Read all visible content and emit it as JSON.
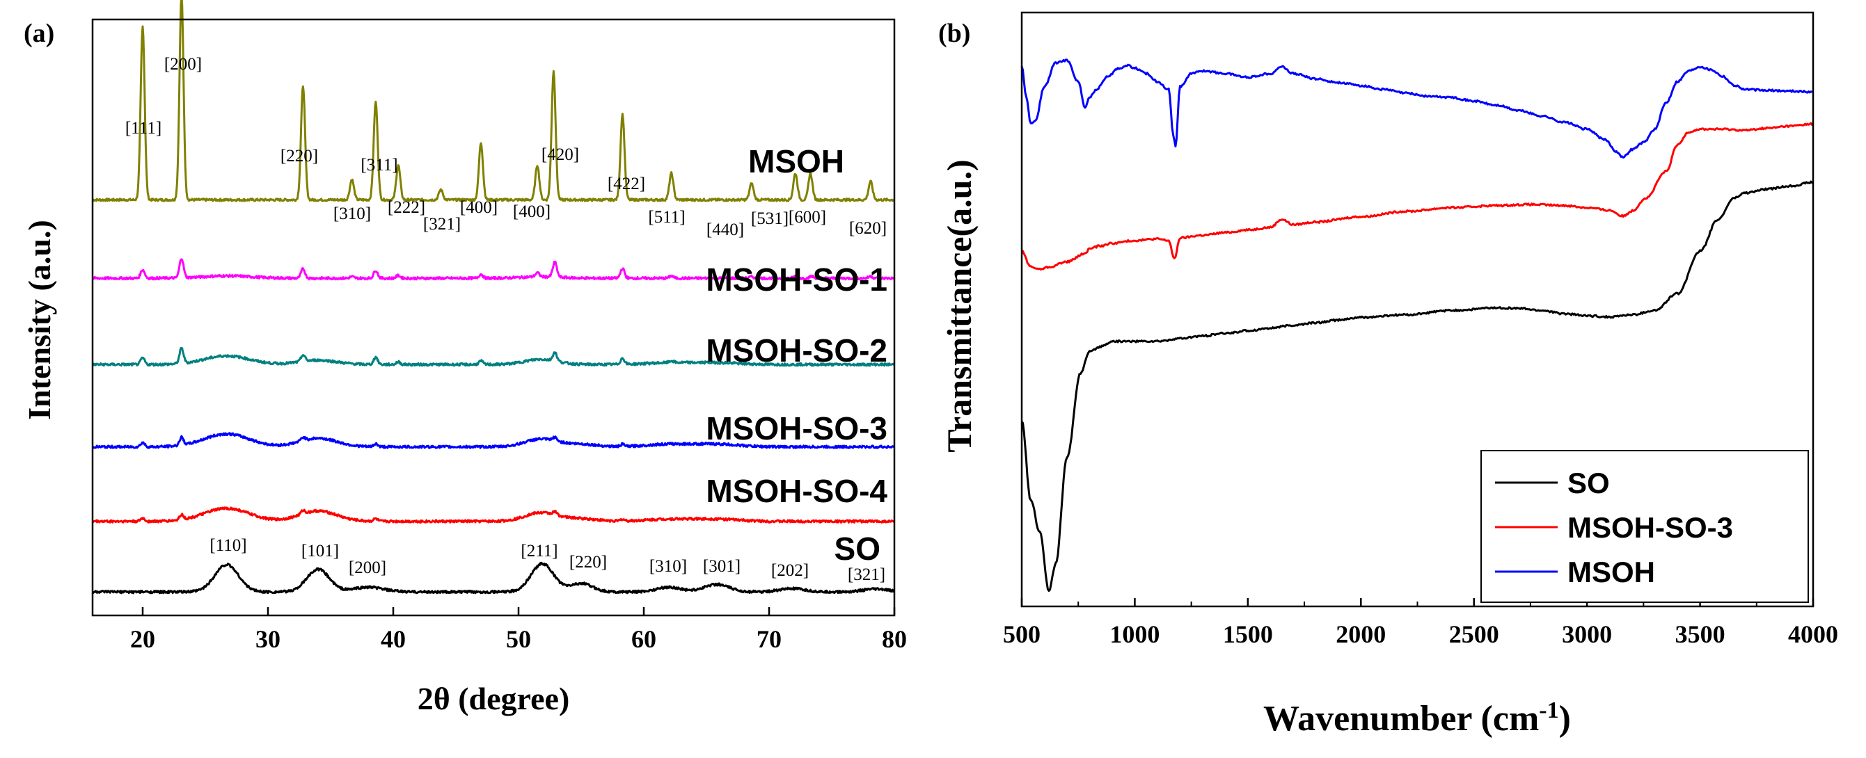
{
  "chart_data": [
    {
      "panel": "(a)",
      "type": "line",
      "xlabel": "2θ (degree)",
      "ylabel": "Intensity (a.u.)",
      "xlim": [
        16,
        80
      ],
      "xticks": [
        20,
        30,
        40,
        50,
        60,
        70,
        80
      ],
      "series": [
        {
          "name": "MSOH",
          "color": "#808000",
          "offset": 5.3,
          "amp": 2.6,
          "peaks": [
            [
              20.0,
              0.85
            ],
            [
              23.1,
              1.0
            ],
            [
              32.8,
              0.56
            ],
            [
              36.7,
              0.1
            ],
            [
              38.6,
              0.48
            ],
            [
              40.4,
              0.17
            ],
            [
              43.8,
              0.05
            ],
            [
              47.0,
              0.28
            ],
            [
              51.5,
              0.17
            ],
            [
              52.8,
              0.63
            ],
            [
              58.3,
              0.42
            ],
            [
              62.2,
              0.13
            ],
            [
              68.6,
              0.08
            ],
            [
              72.1,
              0.13
            ],
            [
              73.3,
              0.13
            ],
            [
              78.1,
              0.09
            ]
          ],
          "humps": []
        },
        {
          "name": "MSOH-SO-1",
          "color": "#ff00ff",
          "offset": 4.3,
          "amp": 0.5,
          "peaks": [
            [
              20.0,
              0.22
            ],
            [
              23.1,
              0.5
            ],
            [
              32.8,
              0.24
            ],
            [
              36.7,
              0.04
            ],
            [
              38.6,
              0.2
            ],
            [
              40.4,
              0.07
            ],
            [
              47.0,
              0.1
            ],
            [
              51.5,
              0.1
            ],
            [
              52.9,
              0.38
            ],
            [
              58.3,
              0.25
            ],
            [
              62.2,
              0.06
            ],
            [
              68.6,
              0.04
            ],
            [
              72.1,
              0.05
            ],
            [
              73.4,
              0.05
            ],
            [
              78.1,
              0.05
            ]
          ],
          "humps": [
            [
              26.7,
              0.06,
              2.0
            ],
            [
              51.8,
              0.04,
              1.6
            ]
          ]
        },
        {
          "name": "MSOH-SO-2",
          "color": "#008080",
          "offset": 3.2,
          "amp": 0.55,
          "peaks": [
            [
              20.0,
              0.15
            ],
            [
              23.1,
              0.35
            ],
            [
              32.8,
              0.15
            ],
            [
              38.6,
              0.17
            ],
            [
              40.4,
              0.06
            ],
            [
              47.0,
              0.08
            ],
            [
              52.9,
              0.2
            ],
            [
              58.3,
              0.14
            ],
            [
              62.2,
              0.04
            ]
          ],
          "humps": [
            [
              26.7,
              0.2,
              1.8
            ],
            [
              34.0,
              0.1,
              1.5
            ],
            [
              51.8,
              0.12,
              1.3
            ],
            [
              62.0,
              0.04,
              1.8
            ],
            [
              65.8,
              0.04,
              1.8
            ]
          ]
        },
        {
          "name": "MSOH-SO-3",
          "color": "#0000ff",
          "offset": 2.15,
          "amp": 0.55,
          "peaks": [
            [
              20.0,
              0.1
            ],
            [
              23.1,
              0.18
            ],
            [
              32.8,
              0.08
            ],
            [
              38.6,
              0.07
            ],
            [
              52.9,
              0.08
            ],
            [
              58.3,
              0.05
            ]
          ],
          "humps": [
            [
              26.7,
              0.3,
              1.8
            ],
            [
              34.0,
              0.2,
              1.5
            ],
            [
              51.8,
              0.18,
              1.3
            ],
            [
              55.0,
              0.06,
              1.3
            ],
            [
              62.0,
              0.06,
              1.8
            ],
            [
              65.8,
              0.06,
              1.8
            ]
          ]
        },
        {
          "name": "MSOH-SO-4",
          "color": "#ff0000",
          "offset": 1.2,
          "amp": 0.55,
          "peaks": [
            [
              20.0,
              0.07
            ],
            [
              23.1,
              0.12
            ],
            [
              32.8,
              0.08
            ],
            [
              38.6,
              0.06
            ],
            [
              52.9,
              0.07
            ],
            [
              58.3,
              0.04
            ]
          ],
          "humps": [
            [
              26.7,
              0.3,
              1.8
            ],
            [
              34.0,
              0.24,
              1.5
            ],
            [
              51.8,
              0.2,
              1.3
            ],
            [
              55.0,
              0.06,
              1.3
            ],
            [
              62.0,
              0.05,
              1.8
            ],
            [
              65.8,
              0.05,
              1.8
            ]
          ]
        },
        {
          "name": "SO",
          "color": "#000000",
          "offset": 0.3,
          "amp": 0.6,
          "peaks": [],
          "humps": [
            [
              26.7,
              0.58,
              0.95
            ],
            [
              34.0,
              0.48,
              0.9
            ],
            [
              38.0,
              0.1,
              1.2
            ],
            [
              51.9,
              0.6,
              0.9
            ],
            [
              55.0,
              0.18,
              0.9
            ],
            [
              62.0,
              0.1,
              1.0
            ],
            [
              65.8,
              0.16,
              1.0
            ],
            [
              71.8,
              0.07,
              1.0
            ],
            [
              78.5,
              0.06,
              1.0
            ]
          ]
        }
      ],
      "series_labels": [
        "MSOH",
        "MSOH-SO-1",
        "MSOH-SO-2",
        "MSOH-SO-3",
        "MSOH-SO-4",
        "SO"
      ],
      "peak_labels_msoh": [
        "[111]",
        "[200]",
        "[220]",
        "[310]",
        "[311]",
        "[222]",
        "[321]",
        "[400]",
        "[400]",
        "[420]",
        "[422]",
        "[511]",
        "[440]",
        "[531]",
        "[600]",
        "[620]"
      ],
      "peak_labels_so": [
        "[110]",
        "[101]",
        "[200]",
        "[211]",
        "[220]",
        "[310]",
        "[301]",
        "[202]",
        "[321]"
      ]
    },
    {
      "panel": "(b)",
      "type": "line",
      "xlabel": "Wavenumber (cm",
      "xlabel_sup": "-1",
      "xlabel_close": ")",
      "ylabel": "Transmittance(a.u.)",
      "xlim": [
        500,
        4000
      ],
      "xticks": [
        500,
        1000,
        1500,
        2000,
        2500,
        3000,
        3500,
        4000
      ],
      "series": [
        {
          "name": "SO",
          "color": "#000000",
          "points": [
            [
              500,
              65
            ],
            [
              540,
              50
            ],
            [
              580,
              44
            ],
            [
              620,
              33
            ],
            [
              650,
              38
            ],
            [
              700,
              58
            ],
            [
              760,
              74
            ],
            [
              800,
              78
            ],
            [
              850,
              79
            ],
            [
              900,
              80
            ],
            [
              1000,
              80
            ],
            [
              1100,
              80
            ],
            [
              1200,
              80.5
            ],
            [
              1300,
              81
            ],
            [
              1400,
              81.5
            ],
            [
              1500,
              82
            ],
            [
              1600,
              82.5
            ],
            [
              1700,
              83
            ],
            [
              1800,
              83.5
            ],
            [
              1900,
              84
            ],
            [
              2000,
              84.5
            ],
            [
              2200,
              85
            ],
            [
              2400,
              85.8
            ],
            [
              2600,
              86.3
            ],
            [
              2700,
              86.2
            ],
            [
              2800,
              85.8
            ],
            [
              2900,
              85.2
            ],
            [
              3000,
              84.8
            ],
            [
              3100,
              84.6
            ],
            [
              3200,
              85
            ],
            [
              3300,
              85.8
            ],
            [
              3400,
              89
            ],
            [
              3500,
              97
            ],
            [
              3580,
              103
            ],
            [
              3650,
              107
            ],
            [
              3700,
              108
            ],
            [
              3800,
              108.7
            ],
            [
              3900,
              109.3
            ],
            [
              4000,
              110
            ]
          ]
        },
        {
          "name": "MSOH-SO-3",
          "color": "#ff0000",
          "points": [
            [
              500,
              97
            ],
            [
              540,
              94
            ],
            [
              580,
              93.6
            ],
            [
              620,
              94
            ],
            [
              700,
              95
            ],
            [
              780,
              96.5
            ],
            [
              800,
              97.5
            ],
            [
              850,
              98
            ],
            [
              900,
              98.5
            ],
            [
              1000,
              99
            ],
            [
              1100,
              99.3
            ],
            [
              1150,
              99
            ],
            [
              1175,
              95.5
            ],
            [
              1200,
              99.5
            ],
            [
              1300,
              100
            ],
            [
              1400,
              100.5
            ],
            [
              1500,
              101
            ],
            [
              1600,
              101.5
            ],
            [
              1650,
              103
            ],
            [
              1700,
              102
            ],
            [
              1800,
              102.5
            ],
            [
              2000,
              103.5
            ],
            [
              2200,
              104.5
            ],
            [
              2400,
              105.2
            ],
            [
              2600,
              105.6
            ],
            [
              2750,
              105.8
            ],
            [
              2900,
              105.6
            ],
            [
              3000,
              105.2
            ],
            [
              3100,
              104.7
            ],
            [
              3160,
              103.6
            ],
            [
              3200,
              104.6
            ],
            [
              3260,
              107
            ],
            [
              3350,
              112
            ],
            [
              3400,
              117
            ],
            [
              3450,
              119.5
            ],
            [
              3500,
              120
            ],
            [
              3600,
              120
            ],
            [
              3700,
              119.8
            ],
            [
              3800,
              120.2
            ],
            [
              3900,
              120.6
            ],
            [
              4000,
              121
            ]
          ]
        },
        {
          "name": "MSOH",
          "color": "#0000ff",
          "points": [
            [
              500,
              132
            ],
            [
              520,
              126
            ],
            [
              540,
              121
            ],
            [
              560,
              121.6
            ],
            [
              600,
              128
            ],
            [
              650,
              132.5
            ],
            [
              700,
              133
            ],
            [
              750,
              129
            ],
            [
              780,
              124
            ],
            [
              800,
              126
            ],
            [
              830,
              127.5
            ],
            [
              880,
              130
            ],
            [
              930,
              131.5
            ],
            [
              970,
              132
            ],
            [
              1000,
              131.5
            ],
            [
              1050,
              130.5
            ],
            [
              1100,
              129
            ],
            [
              1150,
              127.5
            ],
            [
              1170,
              119
            ],
            [
              1180,
              116.8
            ],
            [
              1200,
              128
            ],
            [
              1250,
              130.5
            ],
            [
              1300,
              131
            ],
            [
              1400,
              130.5
            ],
            [
              1500,
              129.8
            ],
            [
              1600,
              130.5
            ],
            [
              1650,
              131.8
            ],
            [
              1700,
              130.5
            ],
            [
              1800,
              129.5
            ],
            [
              1900,
              128.8
            ],
            [
              2000,
              128.2
            ],
            [
              2100,
              127.5
            ],
            [
              2200,
              126.8
            ],
            [
              2300,
              126.2
            ],
            [
              2400,
              126
            ],
            [
              2500,
              125.3
            ],
            [
              2600,
              124.5
            ],
            [
              2700,
              123.5
            ],
            [
              2800,
              122.5
            ],
            [
              2900,
              121.3
            ],
            [
              3000,
              120
            ],
            [
              3080,
              118
            ],
            [
              3130,
              115.8
            ],
            [
              3160,
              114.7
            ],
            [
              3200,
              116.2
            ],
            [
              3250,
              117.5
            ],
            [
              3300,
              120
            ],
            [
              3350,
              125
            ],
            [
              3400,
              129
            ],
            [
              3450,
              131
            ],
            [
              3500,
              131.8
            ],
            [
              3550,
              131.2
            ],
            [
              3600,
              130
            ],
            [
              3650,
              128.3
            ],
            [
              3700,
              127.5
            ],
            [
              3800,
              127.3
            ],
            [
              3900,
              127.2
            ],
            [
              4000,
              127
            ]
          ]
        }
      ],
      "legend": {
        "position": "bottom-right",
        "entries": [
          "SO",
          "MSOH-SO-3",
          "MSOH"
        ]
      }
    }
  ]
}
